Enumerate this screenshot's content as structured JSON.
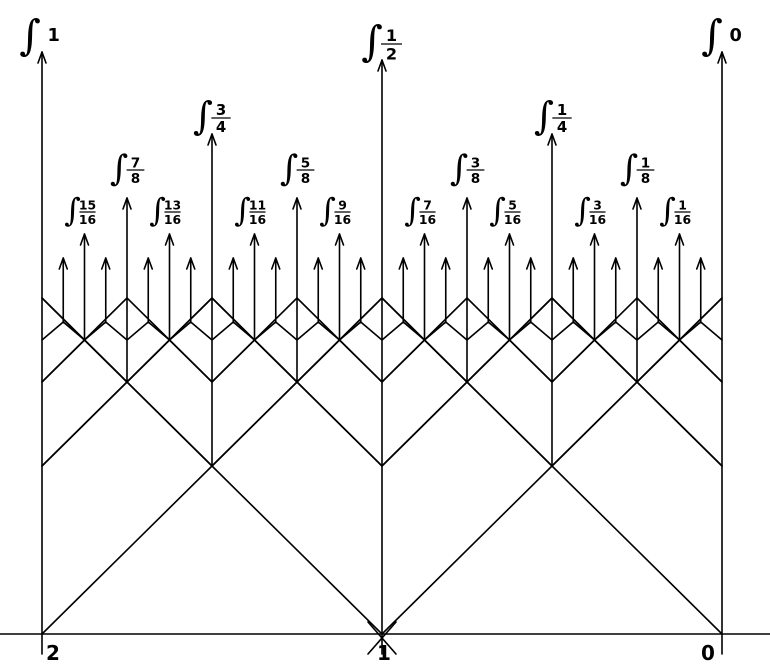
{
  "diagram": {
    "integral_symbol": "∫",
    "baseline_labels": {
      "left": "2",
      "middle": "1",
      "right": "0"
    },
    "main_labels": [
      {
        "id": "1",
        "num": "1",
        "den": ""
      },
      {
        "id": "1-2",
        "num": "1",
        "den": "2"
      },
      {
        "id": "0",
        "num": "0",
        "den": ""
      },
      {
        "id": "3-4",
        "num": "3",
        "den": "4"
      },
      {
        "id": "1-4",
        "num": "1",
        "den": "4"
      }
    ],
    "eighth_labels": [
      {
        "id": "7-8",
        "num": "7",
        "den": "8"
      },
      {
        "id": "5-8",
        "num": "5",
        "den": "8"
      },
      {
        "id": "3-8",
        "num": "3",
        "den": "8"
      },
      {
        "id": "1-8",
        "num": "1",
        "den": "8"
      }
    ],
    "sixteenth_labels": [
      {
        "id": "15-16",
        "num": "15",
        "den": "16"
      },
      {
        "id": "13-16",
        "num": "13",
        "den": "16"
      },
      {
        "id": "11-16",
        "num": "11",
        "den": "16"
      },
      {
        "id": "9-16",
        "num": "9",
        "den": "16"
      },
      {
        "id": "7-16",
        "num": "7",
        "den": "16"
      },
      {
        "id": "5-16",
        "num": "5",
        "den": "16"
      },
      {
        "id": "3-16",
        "num": "3",
        "den": "16"
      },
      {
        "id": "1-16",
        "num": "1",
        "den": "16"
      }
    ]
  }
}
